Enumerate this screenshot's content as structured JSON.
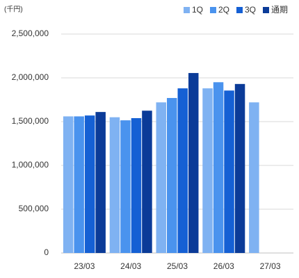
{
  "chart_data": {
    "type": "bar",
    "unit_label": "(千円)",
    "categories": [
      "23/03",
      "24/03",
      "25/03",
      "26/03",
      "27/03"
    ],
    "series": [
      {
        "name": "1Q",
        "color": "#7fb2f2",
        "values": [
          1560000,
          1550000,
          1720000,
          1880000,
          1720000
        ]
      },
      {
        "name": "2Q",
        "color": "#4a93ee",
        "values": [
          1560000,
          1515000,
          1770000,
          1950000,
          null
        ]
      },
      {
        "name": "3Q",
        "color": "#1560d4",
        "values": [
          1570000,
          1540000,
          1880000,
          1855000,
          null
        ]
      },
      {
        "name": "通期",
        "color": "#0b3b98",
        "values": [
          1610000,
          1625000,
          2055000,
          1930000,
          null
        ]
      }
    ],
    "ylim": [
      0,
      2500000
    ],
    "yticks": [
      0,
      {
        "value": 500000,
        "label": "500,000"
      },
      {
        "value": 1000000,
        "label": "1,000,000"
      },
      {
        "value": 1500000,
        "label": "1,500,000"
      },
      {
        "value": 2000000,
        "label": "2,000,000"
      },
      {
        "value": 2500000,
        "label": "2,500,000"
      }
    ],
    "grid": true,
    "legend_position": "top-right"
  }
}
